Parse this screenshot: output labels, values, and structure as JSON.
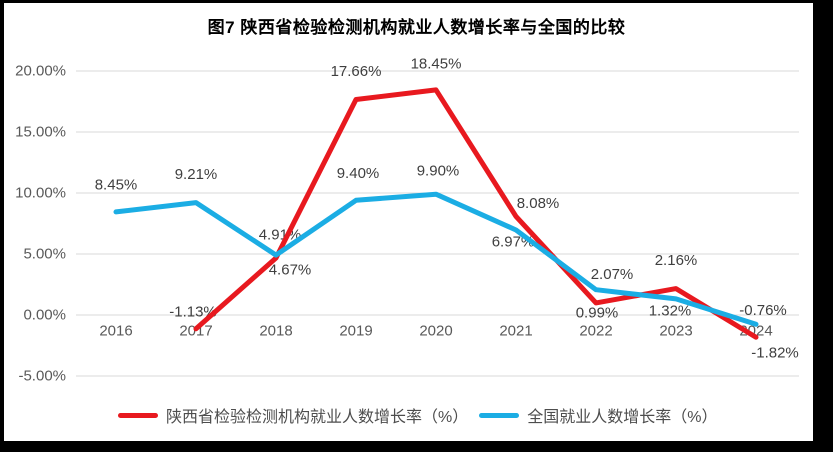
{
  "figure": {
    "title": "图7 陕西省检验检测机构就业人数增长率与全国的比较"
  },
  "colors": {
    "shaanxi_red": "#e8191f",
    "national_blue": "#1fadе4",
    "grid": "#d9d9d9",
    "axis_text": "#595959",
    "label_text": "#3f3f3f",
    "frame_border": "#000000",
    "background": "#ffffff"
  },
  "chart_data": {
    "type": "line",
    "title": "图7 陕西省检验检测机构就业人数增长率与全国的比较",
    "categories": [
      "2016",
      "2017",
      "2018",
      "2019",
      "2020",
      "2021",
      "2022",
      "2023",
      "2024"
    ],
    "series": [
      {
        "name": "陕西省检验检测机构就业人数增长率（%）",
        "color": "#e8191f",
        "values": [
          null,
          -1.13,
          4.67,
          17.66,
          18.45,
          8.08,
          0.99,
          2.16,
          -1.82
        ],
        "point_labels": [
          null,
          "-1.13%",
          "4.67%",
          "17.66%",
          "18.45%",
          "8.08%",
          "0.99%",
          "2.16%",
          "-1.82%"
        ]
      },
      {
        "name": "全国就业人数增长率（%）",
        "color": "#1badе4",
        "values": [
          8.45,
          9.21,
          4.91,
          9.4,
          9.9,
          6.97,
          2.07,
          1.32,
          -0.76
        ],
        "point_labels": [
          "8.45%",
          "9.21%",
          "4.91%",
          "9.40%",
          "9.90%",
          "6.97%",
          "2.07%",
          "1.32%",
          "-0.76%"
        ]
      }
    ],
    "yticks": [
      {
        "value": 20,
        "label": "20.00%"
      },
      {
        "value": 15,
        "label": "15.00%"
      },
      {
        "value": 10,
        "label": "10.00%"
      },
      {
        "value": 5,
        "label": "5.00%"
      },
      {
        "value": 0,
        "label": "0.00%"
      },
      {
        "value": -5,
        "label": "-5.00%"
      }
    ],
    "ylim": [
      -5,
      20
    ],
    "grid": true,
    "data_labels": true,
    "legend_position": "bottom"
  }
}
